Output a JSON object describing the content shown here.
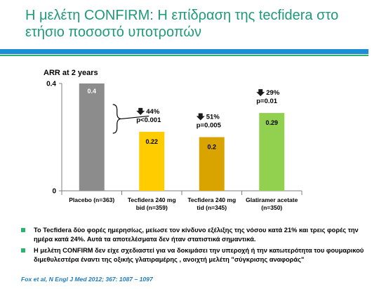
{
  "slide": {
    "title": "Η μελέτη CONFIRM: Η επίδραση της tecfidera στο ετήσιο ποσοστό υποτροπών",
    "accent_blue": "#1a8fd8",
    "accent_green": "#2db36b",
    "title_color": "#1e9a78"
  },
  "chart_data": {
    "type": "bar",
    "title": "ARR at 2 years",
    "ylim": [
      0,
      0.4
    ],
    "ytick_labels": [
      "0",
      "0.4"
    ],
    "categories": [
      [
        "Placebo (n=363)"
      ],
      [
        "Tecfidera 240 mg",
        "bid (n=359)"
      ],
      [
        "Tecfidera 240 mg",
        "tid (n=345)"
      ],
      [
        "Glatiramer acetate",
        "(n=350)"
      ]
    ],
    "values": [
      0.4,
      0.22,
      0.2,
      0.29
    ],
    "value_labels": [
      "0.4",
      "0.22",
      "0.2",
      "0.29"
    ],
    "colors": [
      "#8c8c8c",
      "#ffcc00",
      "#d9a300",
      "#92d050"
    ],
    "annotations": [
      null,
      {
        "arrow": "down-arrow-icon",
        "pct": "44%",
        "p": "p<0.001"
      },
      {
        "arrow": "down-arrow-icon",
        "pct": "51%",
        "p": "p=0.005"
      },
      {
        "arrow": "down-arrow-icon",
        "pct": "29%",
        "p": "p=0.01"
      }
    ],
    "grid": false,
    "bracket": "placebo-to-tecfidera"
  },
  "bullets": [
    "Το Tecfidera δύο φορές ημερησίως, μείωσε τον κίνδυνο εξέλιξης της νόσου κατά 21% και τρεις φορές την ημέρα κατά 24%. Αυτά τα αποτελέσματα δεν ήταν στατιστικά σημαντικά.",
    "Η μελέτη CONFIRM δεν είχε σχεδιαστεί για να δοκιμάσει την υπεροχή ή την κατωτερότητα του φουμαρικού διμεθυλεστέρα έναντι της οξικής γλατιραμέρης , ανοιχτή μελέτη \"σύγκρισης αναφοράς\""
  ],
  "citation": "Fox et al, N Engl J Med 2012; 367: 1087 – 1097"
}
